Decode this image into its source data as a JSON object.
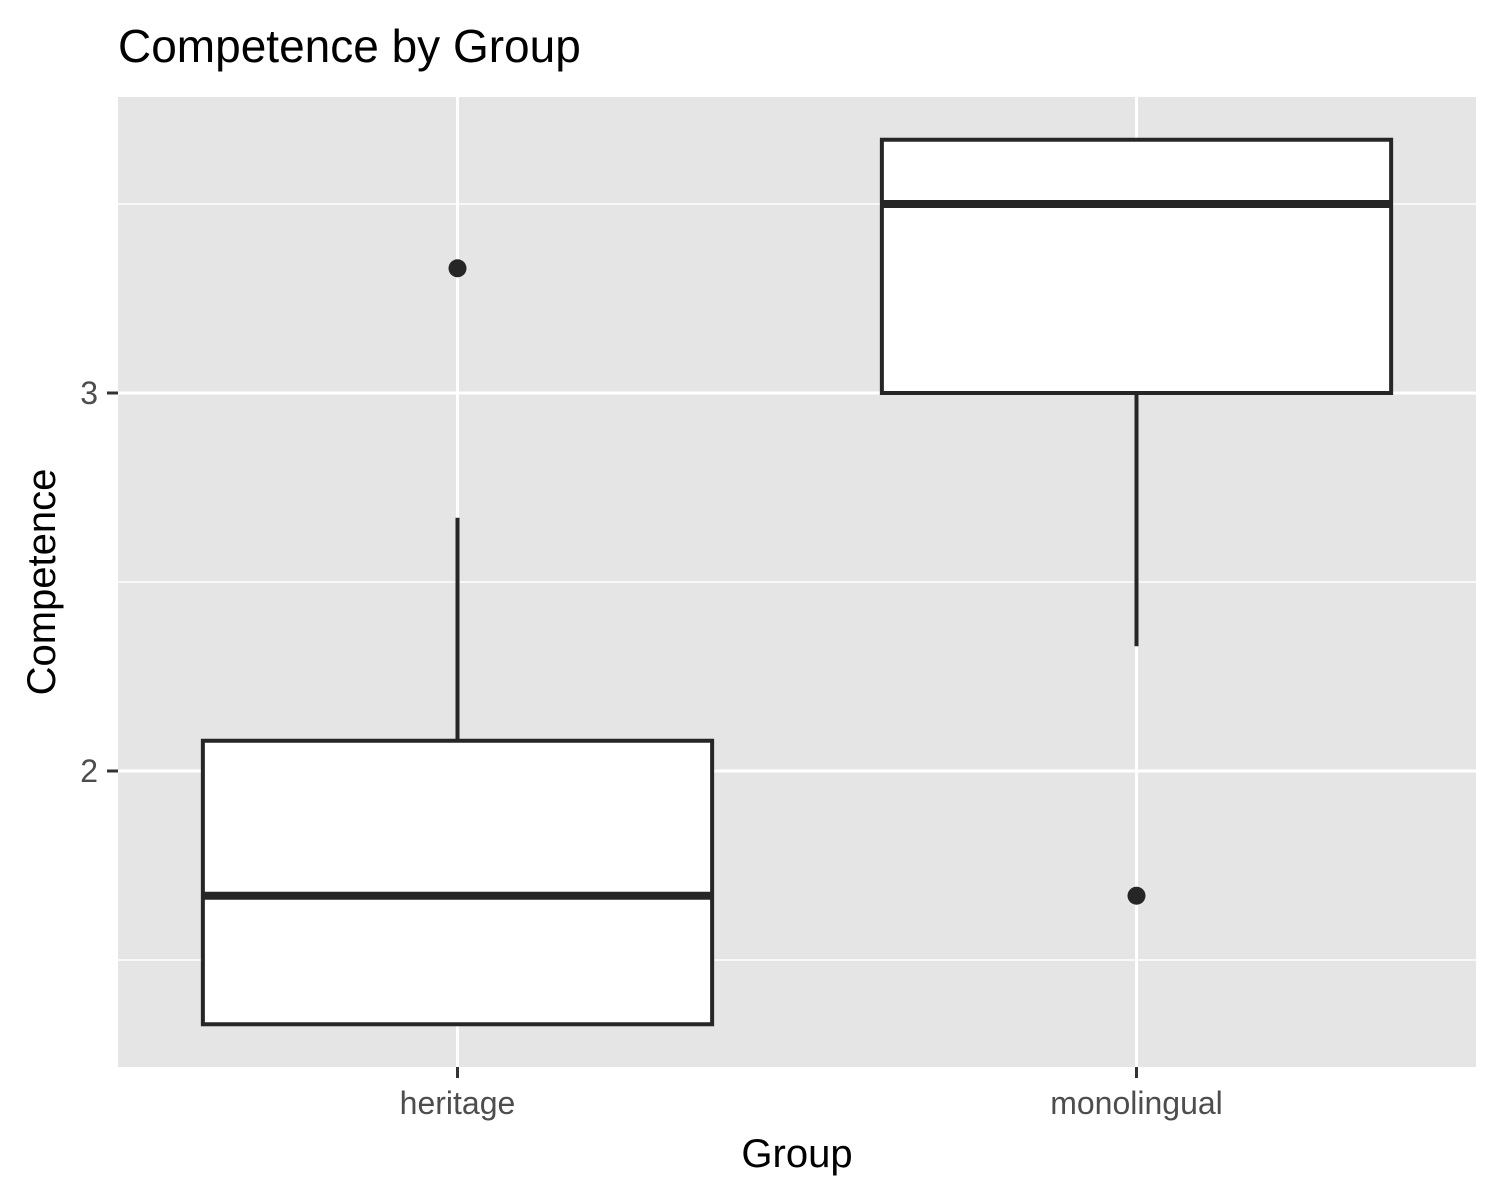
{
  "chart_data": {
    "type": "boxplot",
    "title": "Competence by Group",
    "xlabel": "Group",
    "ylabel": "Competence",
    "categories": [
      "heritage",
      "monolingual"
    ],
    "boxes": [
      {
        "category": "heritage",
        "whisker_low": 1.33,
        "q1": 1.33,
        "median": 1.67,
        "q3": 2.08,
        "whisker_high": 2.67,
        "outliers": [
          3.33
        ]
      },
      {
        "category": "monolingual",
        "whisker_low": 2.33,
        "q1": 3.0,
        "median": 3.5,
        "q3": 3.67,
        "whisker_high": 3.67,
        "outliers": [
          1.67
        ]
      }
    ],
    "y_ticks": [
      2,
      3
    ],
    "ylim": [
      1.25,
      3.78
    ],
    "grid": true,
    "legend": "none",
    "colors": {
      "panel": "#e5e5e5",
      "grid": "#ffffff",
      "box_fill": "#ffffff",
      "stroke": "#262626"
    }
  }
}
